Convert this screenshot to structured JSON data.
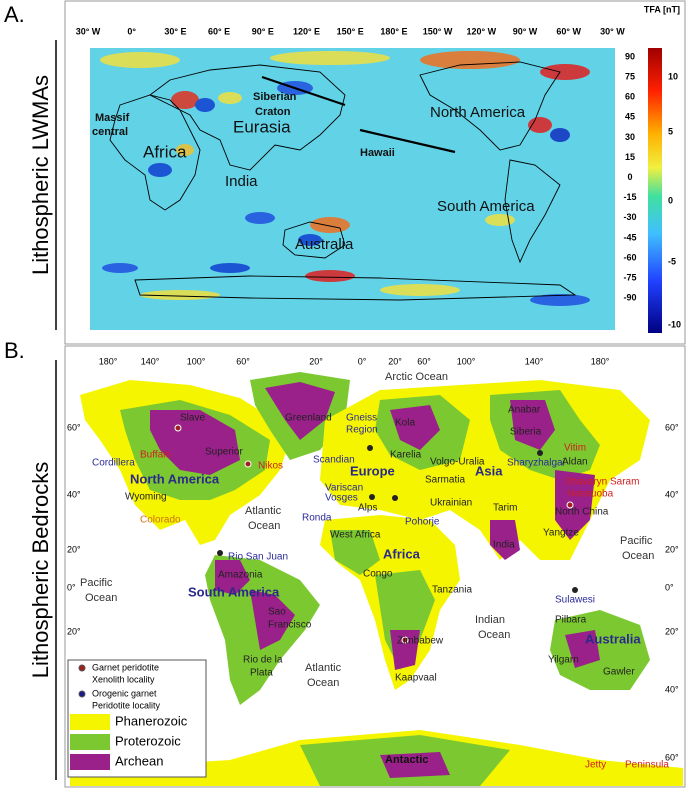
{
  "panel_a": {
    "label": "A.",
    "side_title": "Lithospheric LWMAs",
    "colorbar_title": "TFA [nT]",
    "longitudes": [
      "30° W",
      "0°",
      "30° E",
      "60° E",
      "90° E",
      "120° E",
      "150° E",
      "180° E",
      "150° W",
      "120° W",
      "90° W",
      "60° W",
      "30° W"
    ],
    "latitudes": [
      "90",
      "75",
      "60",
      "45",
      "30",
      "15",
      "0",
      "-15",
      "-30",
      "-45",
      "-60",
      "-75",
      "-90"
    ],
    "colorbar_ticks": [
      "10",
      "5",
      "0",
      "-5",
      "-10"
    ],
    "regions": [
      "Massif",
      "central",
      "Siberian",
      "Craton",
      "Eurasia",
      "Africa",
      "India",
      "Australia",
      "Hawaii",
      "North America",
      "South America"
    ]
  },
  "panel_b": {
    "label": "B.",
    "side_title": "Lithospheric Bedrocks",
    "longitudes": [
      "180°",
      "140°",
      "100°",
      "60°",
      "20°",
      "0°",
      "20°",
      "60°",
      "100°",
      "140°",
      "180°"
    ],
    "latitudes_left": [
      "60°",
      "40°",
      "20°",
      "0°",
      "20°"
    ],
    "latitudes_right": [
      "60°",
      "40°",
      "20°",
      "0°",
      "20°",
      "40°",
      "60°"
    ],
    "places": [
      "Arctic Ocean",
      "Greenland",
      "Slave",
      "Superior",
      "Nikos",
      "Buffalo",
      "Cordillera",
      "North America",
      "Wyoming",
      "Colorado",
      "Atlantic",
      "Ocean",
      "Rio San Juan",
      "Pacific",
      "Ocean",
      "Amazonia",
      "South America",
      "Sao",
      "Francisco",
      "Rio de la",
      "Plata",
      "Atlantic",
      "Ocean",
      "Gneiss",
      "Region",
      "Kola",
      "Karelia",
      "Scandian",
      "Europe",
      "Volgo-Uralia",
      "Sarmatia",
      "Variscan",
      "Vosges",
      "Alps",
      "Ukrainian",
      "Ronda",
      "Pohorje",
      "West Africa",
      "Africa",
      "Congo",
      "Tanzania",
      "Zimbabew",
      "Kaapvaal",
      "Indian",
      "Ocean",
      "Anabar",
      "Siberia",
      "Vitim",
      "Sharyzhalgai",
      "Aldan",
      "Shavaryn",
      "Saram",
      "Hannuoba",
      "Asia",
      "Tarim",
      "North China",
      "India",
      "Yangtze",
      "Pacific",
      "Ocean",
      "Sulawesi",
      "Pilbara",
      "Australia",
      "Yilgarn",
      "Gawler",
      "Antactic",
      "Jetty",
      "Peninsula"
    ],
    "legend": [
      "Garnet peridotite",
      "Xenolith locality",
      "Orogenic garnet",
      "Peridotite locality",
      "Phanerozoic",
      "Proterozoic",
      "Archean"
    ]
  }
}
